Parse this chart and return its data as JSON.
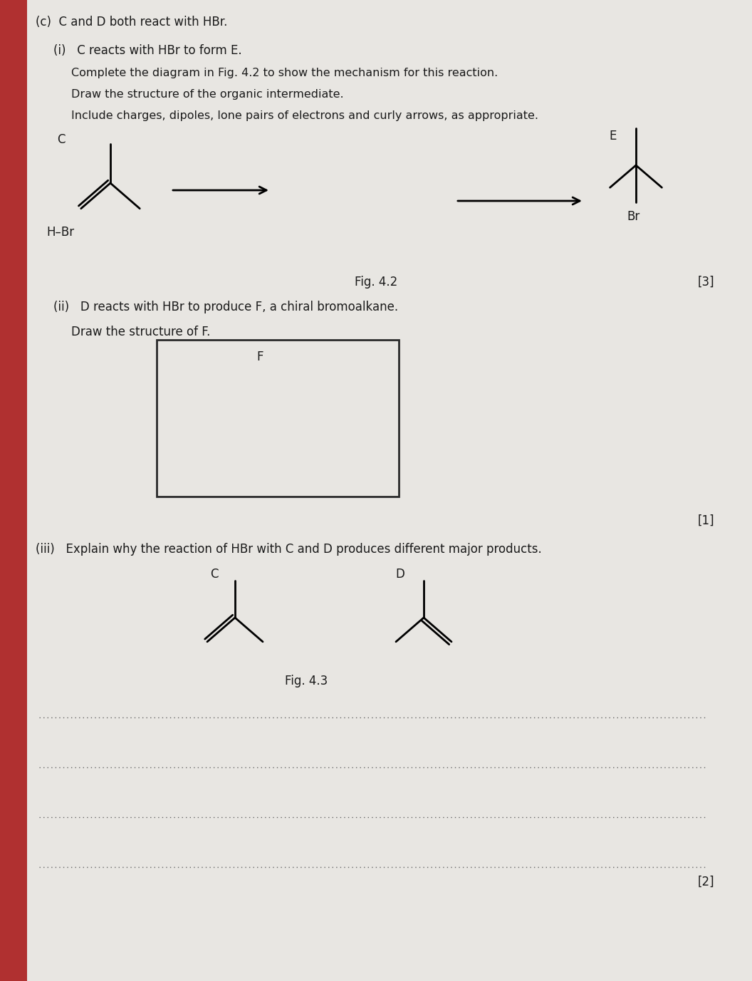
{
  "bg_color": "#c8c5c0",
  "paper_color": "#e8e6e2",
  "text_color": "#1a1a1a",
  "title_c": "(c)  C and D both react with HBr.",
  "sub_i": "(i)   C reacts with HBr to form E.",
  "line1": "Complete the diagram in Fig. 4.2 to show the mechanism for this reaction.",
  "line2": "Draw the structure of the organic intermediate.",
  "line3": "Include charges, dipoles, lone pairs of electrons and curly arrows, as appropriate.",
  "label_C_top": "C",
  "label_HBr": "H–Br",
  "label_E": "E",
  "label_Br": "Br",
  "fig42": "Fig. 4.2",
  "marks3": "[3]",
  "sub_ii_a": "(ii)   D reacts with HBr to produce F, a chiral bromoalkane.",
  "sub_ii_b": "Draw the structure of F.",
  "label_F": "F",
  "marks1": "[1]",
  "sub_iii": "(iii)   Explain why the reaction of HBr with C and D produces different major products.",
  "label_C_bot": "C",
  "label_D_bot": "D",
  "fig43": "Fig. 4.3",
  "marks2": "[2]",
  "dotted_lines": 4,
  "red_strip_color": "#b03030"
}
